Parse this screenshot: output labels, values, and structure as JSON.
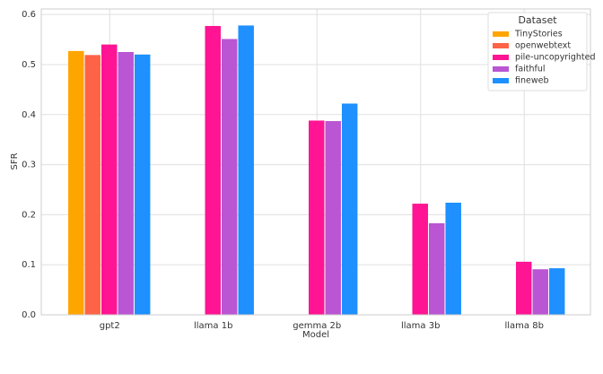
{
  "chart_data": {
    "type": "grouped_bar",
    "x_label": "Model",
    "y_label": "SFR",
    "categories": [
      "gpt2",
      "llama 1b",
      "gemma 2b",
      "llama 3b",
      "llama 8b"
    ],
    "series": [
      {
        "name": "TinyStories",
        "color": "#FFA500",
        "values": [
          0.527,
          null,
          null,
          null,
          null
        ]
      },
      {
        "name": "openwebtext",
        "color": "#FF6347",
        "values": [
          0.519,
          null,
          null,
          null,
          null
        ]
      },
      {
        "name": "pile-uncopyrighted",
        "color": "#FF1493",
        "values": [
          0.54,
          0.577,
          0.388,
          0.222,
          0.106
        ]
      },
      {
        "name": "faithful",
        "color": "#BA55D3",
        "values": [
          0.525,
          0.551,
          0.387,
          0.183,
          0.091
        ]
      },
      {
        "name": "fineweb",
        "color": "#1E90FF",
        "values": [
          0.52,
          0.578,
          0.422,
          0.224,
          0.093
        ]
      }
    ],
    "legend_title": "Dataset",
    "legend_position": "upper right",
    "ylim": [
      0,
      0.611
    ],
    "yticks": [
      {
        "value": 0,
        "label": "0.0"
      },
      0.1,
      0.2,
      0.3,
      0.4,
      0.5,
      0.6
    ],
    "grid": true
  }
}
